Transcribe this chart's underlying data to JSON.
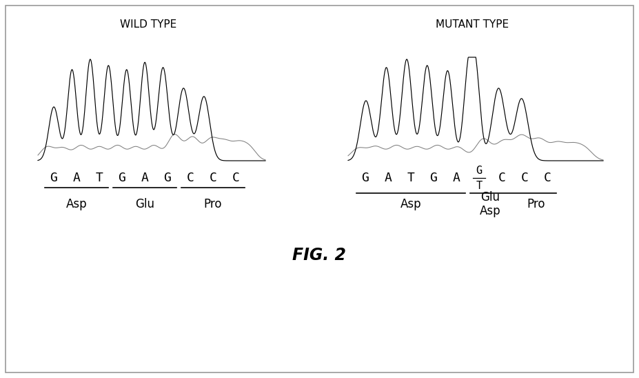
{
  "title": "FIG. 2",
  "wild_type_label": "WILD TYPE",
  "mutant_type_label": "MUTANT TYPE",
  "wild_type_seq": "GATGAGCCC",
  "wild_type_aa": [
    "Asp",
    "Glu",
    "Pro"
  ],
  "background_color": "#ffffff",
  "text_color": "#000000",
  "underline_groups_wt": [
    [
      0,
      2
    ],
    [
      3,
      5
    ],
    [
      6,
      8
    ]
  ],
  "underline_groups_mt_1": [
    0,
    4
  ],
  "underline_groups_mt_2": [
    5,
    8
  ],
  "underline_groups_mt_3": [
    6,
    8
  ]
}
